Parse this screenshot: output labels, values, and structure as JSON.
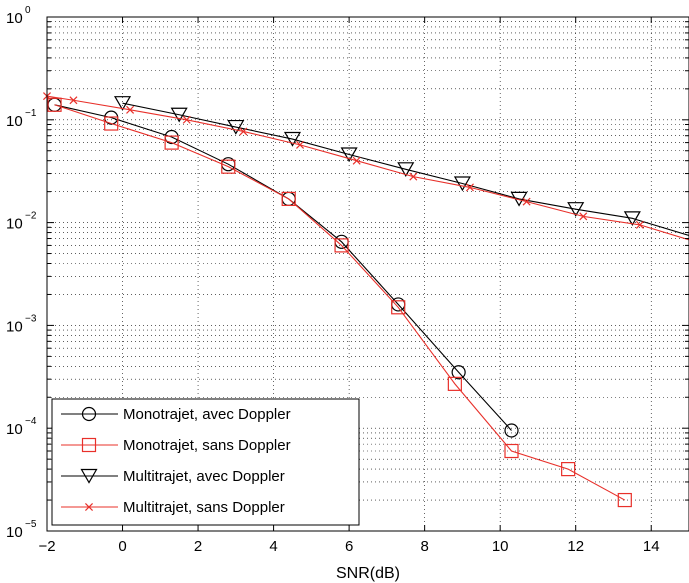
{
  "chart_data": {
    "type": "line",
    "xlabel": "SNR(dB)",
    "ylabel": "",
    "yscale": "log",
    "xlim": [
      -2,
      15
    ],
    "ylim": [
      1e-05,
      1
    ],
    "grid": true,
    "legend_position": "bottom-left",
    "x_ticks": [
      "−2",
      "0",
      "2",
      "4",
      "6",
      "8",
      "10",
      "12",
      "14"
    ],
    "y_ticks": [
      {
        "base": "10",
        "exp": "−5"
      },
      {
        "base": "10",
        "exp": "−4"
      },
      {
        "base": "10",
        "exp": "−3"
      },
      {
        "base": "10",
        "exp": "−2"
      },
      {
        "base": "10",
        "exp": "−1"
      },
      {
        "base": "10",
        "exp": "0"
      }
    ],
    "series": [
      {
        "name": "Monotrajet, avec Doppler",
        "color": "#000000",
        "marker": "circle",
        "x": [
          -1.8,
          -0.3,
          1.3,
          2.8,
          4.4,
          5.8,
          7.3,
          8.9,
          10.3
        ],
        "y": [
          0.14,
          0.105,
          0.068,
          0.037,
          0.017,
          0.0065,
          0.0016,
          0.00035,
          9.5e-05
        ]
      },
      {
        "name": "Monotrajet, sans Doppler",
        "color": "#e8302a",
        "marker": "square",
        "x": [
          -1.8,
          -0.3,
          1.3,
          2.8,
          4.4,
          5.8,
          7.3,
          8.8,
          10.3,
          11.8,
          13.3
        ],
        "y": [
          0.14,
          0.092,
          0.06,
          0.035,
          0.017,
          0.006,
          0.0015,
          0.00027,
          6e-05,
          4e-05,
          2e-05
        ]
      },
      {
        "name": "Multitrajet, avec Doppler",
        "color": "#000000",
        "marker": "triangle-down",
        "x": [
          0,
          1.5,
          3,
          4.5,
          6,
          7.5,
          9,
          10.5,
          12,
          13.5,
          15
        ],
        "y": [
          0.145,
          0.112,
          0.085,
          0.065,
          0.046,
          0.033,
          0.024,
          0.017,
          0.0135,
          0.011,
          0.0075
        ]
      },
      {
        "name": "Multitrajet, sans Doppler",
        "color": "#e8302a",
        "marker": "x",
        "x": [
          -2,
          -1.3,
          0.2,
          1.7,
          3.2,
          4.7,
          6.2,
          7.7,
          9.2,
          10.7,
          12.2,
          13.7,
          15
        ],
        "y": [
          0.17,
          0.155,
          0.125,
          0.1,
          0.077,
          0.057,
          0.04,
          0.028,
          0.022,
          0.016,
          0.0115,
          0.0095,
          0.0068
        ]
      }
    ]
  }
}
